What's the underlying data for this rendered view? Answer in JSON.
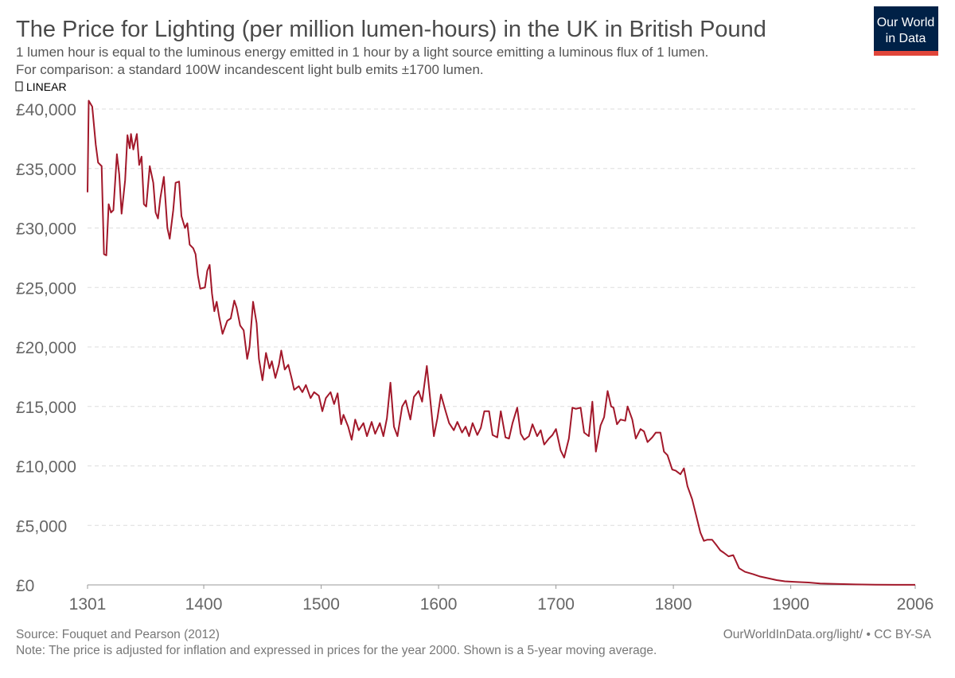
{
  "chart_data": {
    "type": "line",
    "title": "The Price for Lighting (per million lumen-hours) in the UK in British Pound",
    "subtitle": [
      "1 lumen hour is equal to the luminous energy emitted in 1 hour by a light source emitting a luminous flux of 1 lumen.",
      "For comparison: a standard 100W incandescent light bulb emits ±1700 lumen."
    ],
    "scale_toggle": "LINEAR",
    "logo": [
      "Our World",
      "in Data"
    ],
    "source": "Source: Fouquet and Pearson (2012)",
    "url_license": "OurWorldInData.org/light/ • CC BY-SA",
    "note": "Note: The price is adjusted for inflation and expressed in prices for the year 2000. Shown is a 5-year moving average.",
    "color": "#a2182a",
    "grid": true,
    "xlim": [
      1301,
      2006
    ],
    "xticks": [
      1301,
      1400,
      1500,
      1600,
      1700,
      1800,
      1900,
      2006
    ],
    "ylim": [
      0,
      40000
    ],
    "yticks": [
      {
        "value": 0,
        "label": "£0"
      },
      {
        "value": 5000,
        "label": "£5,000"
      },
      {
        "value": 10000,
        "label": "£10,000"
      },
      {
        "value": 15000,
        "label": "£15,000"
      },
      {
        "value": 20000,
        "label": "£20,000"
      },
      {
        "value": 25000,
        "label": "£25,000"
      },
      {
        "value": 30000,
        "label": "£30,000"
      },
      {
        "value": 35000,
        "label": "£35,000"
      },
      {
        "value": 40000,
        "label": "£40,000"
      }
    ],
    "x": [
      1301,
      1302,
      1305,
      1308,
      1310,
      1313,
      1315,
      1317,
      1319,
      1321,
      1323,
      1326,
      1328,
      1330,
      1333,
      1335,
      1337,
      1338,
      1340,
      1343,
      1345,
      1347,
      1349,
      1351,
      1354,
      1357,
      1359,
      1361,
      1363,
      1366,
      1369,
      1371,
      1374,
      1376,
      1379,
      1381,
      1384,
      1386,
      1388,
      1391,
      1393,
      1395,
      1397,
      1401,
      1403,
      1405,
      1407,
      1409,
      1411,
      1413,
      1416,
      1420,
      1423,
      1426,
      1428,
      1431,
      1434,
      1437,
      1439,
      1442,
      1445,
      1447,
      1450,
      1453,
      1456,
      1458,
      1461,
      1464,
      1466,
      1469,
      1472,
      1475,
      1477,
      1481,
      1484,
      1487,
      1491,
      1494,
      1498,
      1501,
      1504,
      1508,
      1511,
      1514,
      1517,
      1519,
      1523,
      1526,
      1529,
      1532,
      1536,
      1539,
      1543,
      1546,
      1550,
      1553,
      1556,
      1559,
      1562,
      1565,
      1569,
      1572,
      1576,
      1579,
      1583,
      1586,
      1590,
      1593,
      1596,
      1599,
      1602,
      1606,
      1609,
      1613,
      1616,
      1620,
      1623,
      1626,
      1629,
      1633,
      1636,
      1639,
      1643,
      1646,
      1650,
      1653,
      1657,
      1660,
      1663,
      1667,
      1670,
      1673,
      1677,
      1680,
      1684,
      1687,
      1690,
      1694,
      1697,
      1700,
      1704,
      1707,
      1711,
      1714,
      1717,
      1721,
      1724,
      1728,
      1731,
      1734,
      1738,
      1741,
      1744,
      1747,
      1749,
      1752,
      1755,
      1759,
      1761,
      1765,
      1768,
      1772,
      1775,
      1778,
      1782,
      1785,
      1789,
      1792,
      1795,
      1799,
      1802,
      1806,
      1809,
      1812,
      1816,
      1819,
      1823,
      1826,
      1829,
      1833,
      1837,
      1840,
      1843,
      1847,
      1851,
      1856,
      1861,
      1868,
      1874,
      1881,
      1888,
      1895,
      1904,
      1915,
      1925,
      1938,
      1955,
      1972,
      1989,
      2006
    ],
    "values": [
      33000,
      40700,
      40200,
      37000,
      35500,
      35200,
      27800,
      27700,
      32000,
      31300,
      31500,
      36200,
      34500,
      31200,
      34000,
      37800,
      36700,
      37900,
      36600,
      37900,
      35300,
      36000,
      32000,
      31800,
      35200,
      33800,
      31300,
      30800,
      32500,
      34300,
      30000,
      29100,
      31500,
      33800,
      33900,
      31000,
      30000,
      30400,
      28600,
      28300,
      27800,
      26000,
      24900,
      25000,
      26400,
      26900,
      24500,
      23000,
      23800,
      22600,
      21100,
      22200,
      22400,
      23900,
      23300,
      21800,
      21400,
      19000,
      20000,
      23800,
      22000,
      19000,
      17200,
      19500,
      18200,
      18800,
      17400,
      18500,
      19700,
      18100,
      18500,
      17300,
      16400,
      16700,
      16200,
      16800,
      15700,
      16200,
      15900,
      14600,
      15700,
      16200,
      15200,
      16100,
      13500,
      14300,
      13300,
      12200,
      13900,
      13000,
      13600,
      12500,
      13700,
      12700,
      13600,
      12500,
      14000,
      17000,
      13300,
      12500,
      15000,
      15500,
      13900,
      15800,
      16300,
      15400,
      18400,
      15500,
      12500,
      14000,
      16000,
      14600,
      13600,
      13000,
      13700,
      12800,
      13300,
      12500,
      13600,
      12600,
      13200,
      14600,
      14600,
      12600,
      12400,
      14600,
      12400,
      12300,
      13600,
      14900,
      12700,
      12200,
      12500,
      13500,
      12500,
      13000,
      11800,
      12300,
      12600,
      13100,
      11300,
      10700,
      12300,
      14900,
      14800,
      14900,
      12800,
      12500,
      15400,
      11200,
      13400,
      14100,
      16300,
      15000,
      14900,
      13500,
      13900,
      13800,
      15000,
      13900,
      12300,
      13100,
      12900,
      12000,
      12400,
      12800,
      12800,
      11200,
      10900,
      9700,
      9600,
      9300,
      9800,
      8300,
      7200,
      6000,
      4400,
      3700,
      3800,
      3800,
      3300,
      2900,
      2700,
      2400,
      2500,
      1400,
      1100,
      900,
      700,
      550,
      400,
      300,
      250,
      200,
      120,
      80,
      40,
      20,
      10,
      5
    ]
  }
}
